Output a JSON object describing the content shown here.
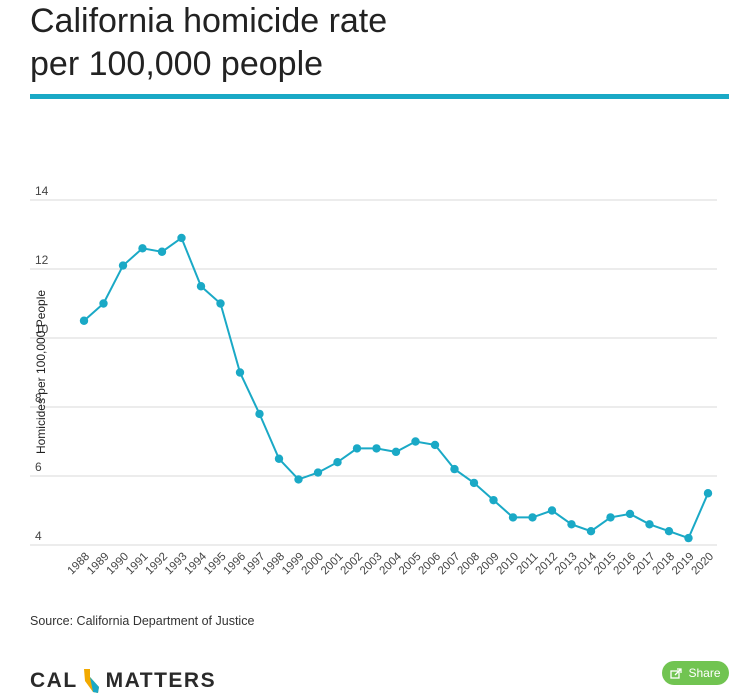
{
  "page": {
    "title_line1": "California homicide rate",
    "title_line2": "per 100,000 people",
    "source": "Source: California Department of Justice",
    "logo_left": "CAL",
    "logo_right": "MATTERS",
    "share_label": "Share",
    "accent_color": "#1aa9c6",
    "share_color": "#71c451",
    "logo_icon": "california-state-icon",
    "share_icon": "share-icon"
  },
  "chart_data": {
    "type": "line",
    "title": "California homicide rate per 100,000 people",
    "xlabel": "",
    "ylabel": "Homicides per 100,000 People",
    "ylim": [
      4,
      14
    ],
    "yticks": [
      4,
      6,
      8,
      10,
      12,
      14
    ],
    "grid": true,
    "categories": [
      "1988",
      "1989",
      "1990",
      "1991",
      "1992",
      "1993",
      "1994",
      "1995",
      "1996",
      "1997",
      "1998",
      "1999",
      "2000",
      "2001",
      "2002",
      "2003",
      "2004",
      "2005",
      "2006",
      "2007",
      "2008",
      "2009",
      "2010",
      "2011",
      "2012",
      "2013",
      "2014",
      "2015",
      "2016",
      "2017",
      "2018",
      "2019",
      "2020"
    ],
    "series": [
      {
        "values": [
          10.5,
          11.0,
          12.1,
          12.6,
          12.5,
          12.9,
          11.5,
          11.0,
          9.0,
          7.8,
          6.5,
          5.9,
          6.1,
          6.4,
          6.8,
          6.8,
          6.7,
          7.0,
          6.9,
          6.2,
          5.8,
          5.3,
          4.8,
          4.8,
          5.0,
          4.6,
          4.4,
          4.8,
          4.9,
          4.6,
          4.4,
          4.2,
          5.5
        ],
        "color": "#1aa9c6"
      }
    ]
  }
}
